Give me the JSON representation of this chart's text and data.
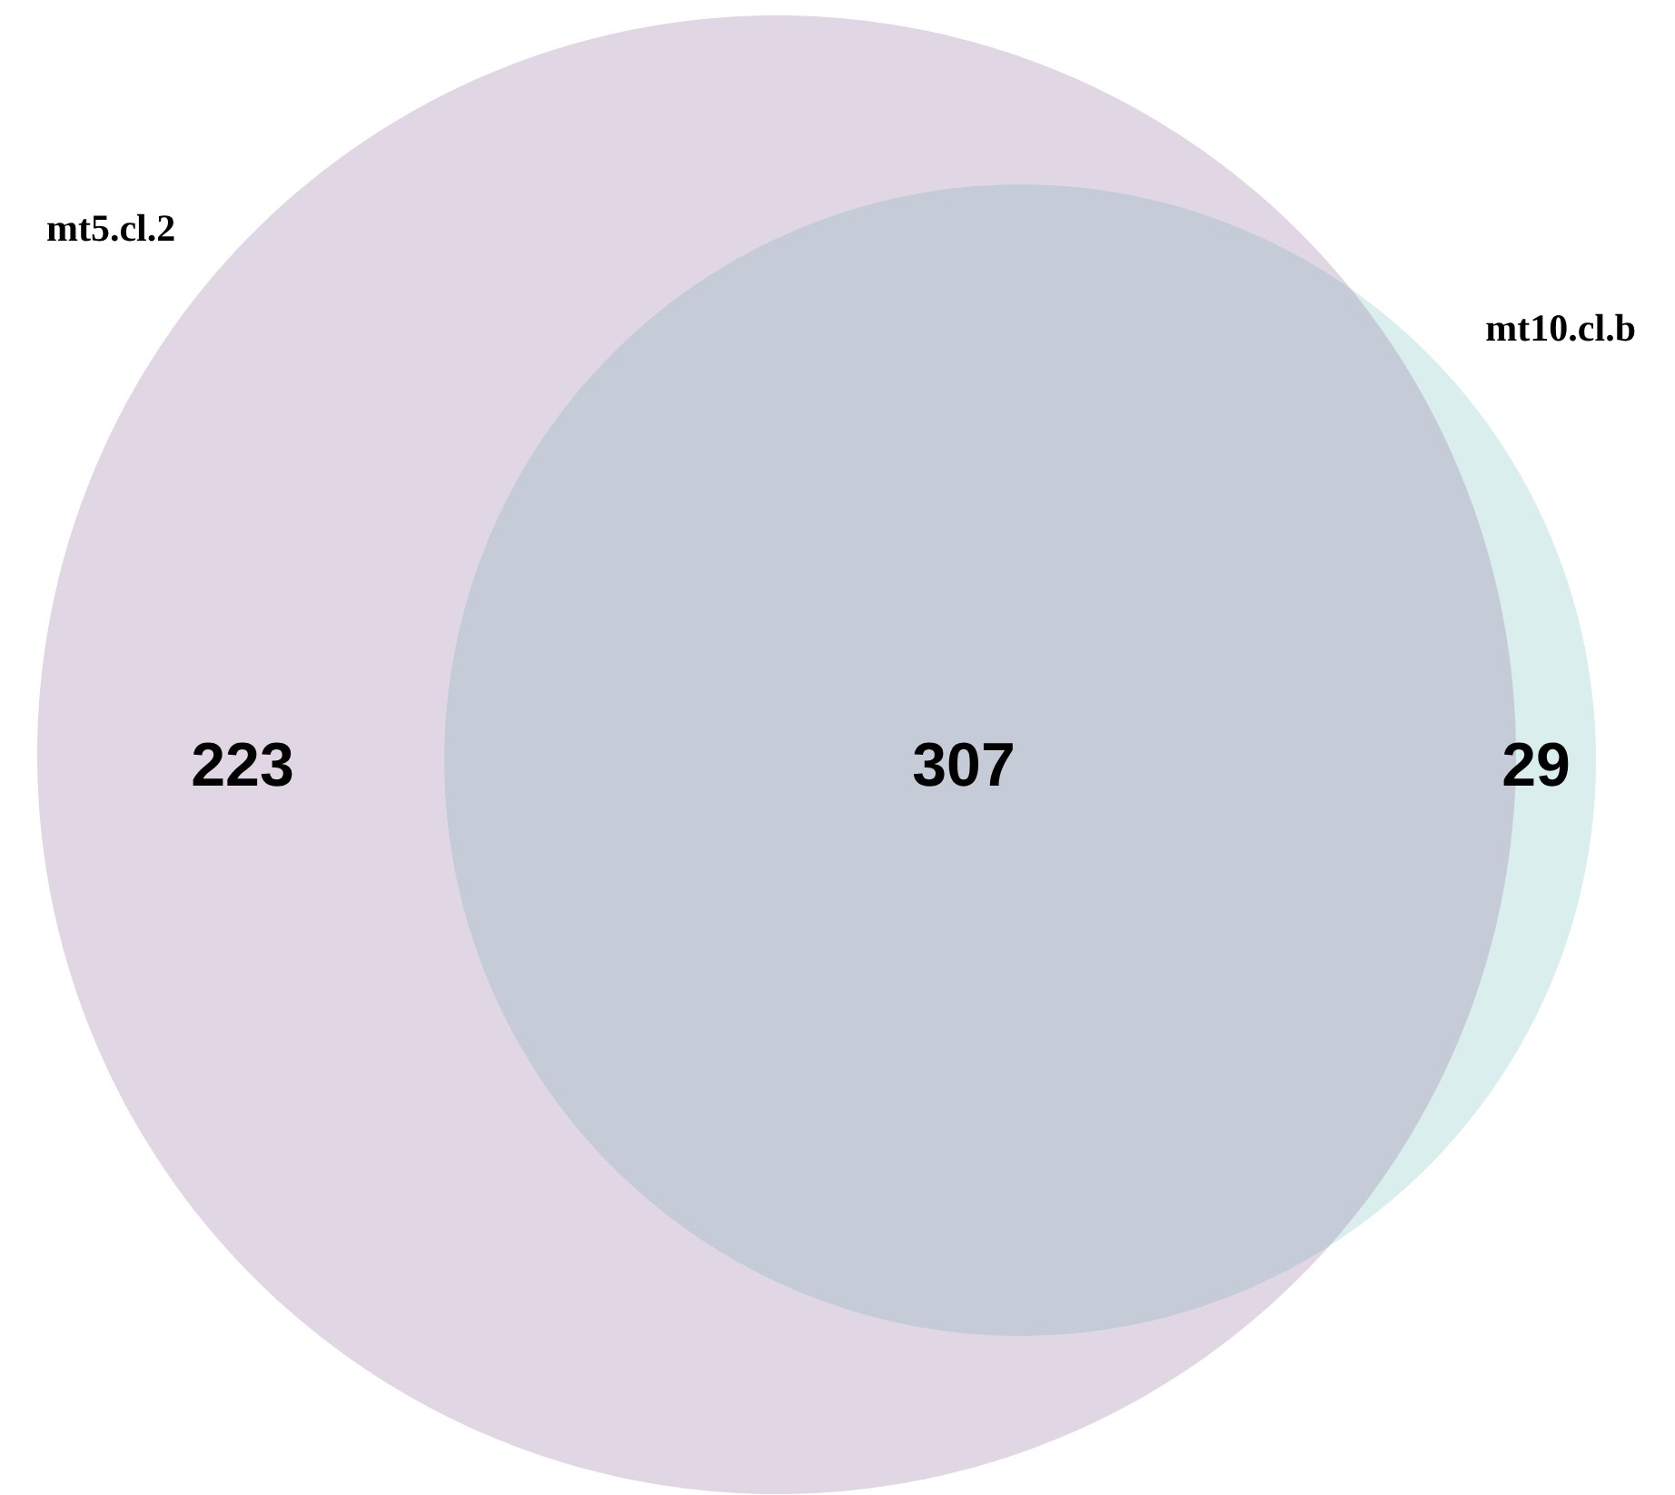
{
  "chart_data": {
    "type": "other",
    "categories": [
      null,
      null,
      null
    ],
    "values": [
      223,
      307,
      29
    ],
    "data_labels": true,
    "colors": [
      "#e1d6e3",
      "#c5ccd8",
      "#daeeee"
    ],
    "annotations": [
      "mt5.cl.2",
      "mt10.cl.b"
    ]
  }
}
